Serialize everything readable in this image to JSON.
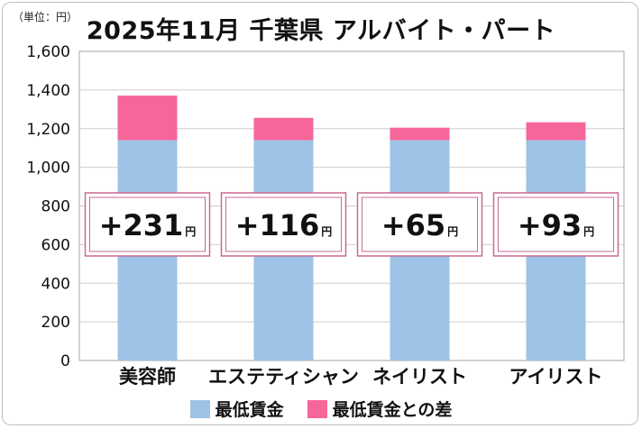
{
  "header": {
    "unit_label": "（単位：円）",
    "title": "2025年11月 千葉県 アルバイト・パート"
  },
  "colors": {
    "base": "#9dc3e6",
    "diff": "#f5679a",
    "box_border": "#c86a93",
    "grid": "#cfcfcf",
    "plot_border": "#a6a6a6"
  },
  "chart_data": {
    "type": "bar",
    "stacked": true,
    "title": "2025年11月 千葉県 アルバイト・パート",
    "categories": [
      "美容師",
      "エステティシャン",
      "ネイリスト",
      "アイリスト"
    ],
    "series": [
      {
        "name": "最低賃金",
        "values": [
          1140,
          1140,
          1140,
          1140
        ]
      },
      {
        "name": "最低賃金との差",
        "values": [
          231,
          116,
          65,
          93
        ]
      }
    ],
    "annotations": [
      {
        "number": "+231",
        "unit": "円"
      },
      {
        "number": "+116",
        "unit": "円"
      },
      {
        "number": "+65",
        "unit": "円"
      },
      {
        "number": "+93",
        "unit": "円"
      }
    ],
    "ylim": [
      0,
      1600
    ],
    "yticks": [
      "0",
      "200",
      "400",
      "600",
      "800",
      "1,000",
      "1,200",
      "1,400",
      "1,600"
    ],
    "grid": true,
    "legend_position": "bottom"
  }
}
